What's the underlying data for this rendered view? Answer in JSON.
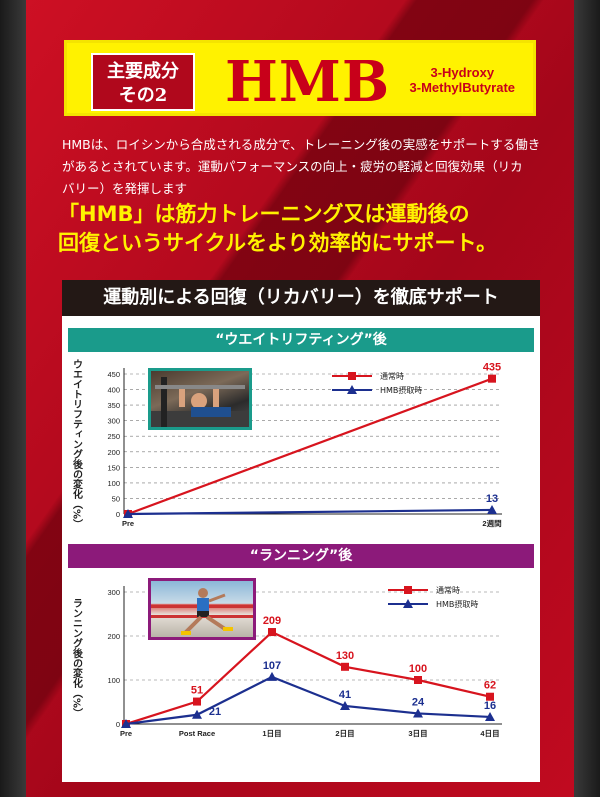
{
  "header": {
    "badge_line1": "主要成分",
    "badge_line2": "その2",
    "title": "HMB",
    "subtitle_line1": "3-Hydroxy",
    "subtitle_line2": "3-MethylButyrate"
  },
  "description": {
    "line1": "HMBは、ロイシンから合成される成分で、トレーニング後の実感をサポートする働き",
    "line2": "があるとされています。運動パフォーマンスの向上・疲労の軽減と回復効果（リカ",
    "line3": "バリー）を発揮します"
  },
  "highlight": {
    "line1": "「HMB」は筋力トレーニング又は運動後の",
    "line2": "回復というサイクルをより効率的にサポート。"
  },
  "panel": {
    "heading": "運動別による回復（リカバリー）を徹底サポート"
  },
  "colors": {
    "normal": "#d7141e",
    "hmb": "#1c2f8f",
    "weight_bar": "#1a9b8b",
    "running_bar": "#8c1a7a"
  },
  "chart_data": [
    {
      "type": "line",
      "title": "“ウエイトリフティング”後",
      "ylabel": "ウエイトリフティング後の変化（%）",
      "x": [
        "Pre",
        "2週間"
      ],
      "ylim": [
        0,
        450
      ],
      "yticks": [
        0,
        50,
        100,
        150,
        200,
        250,
        300,
        350,
        400,
        450
      ],
      "series": [
        {
          "name": "通常時",
          "values": [
            0,
            435
          ],
          "labels": [
            "",
            "435"
          ]
        },
        {
          "name": "HMB摂取時",
          "values": [
            0,
            13
          ],
          "labels": [
            "",
            "13"
          ]
        }
      ],
      "legend": "top-center"
    },
    {
      "type": "line",
      "title": "“ランニング”後",
      "ylabel": "ランニング後の変化（%）",
      "x": [
        "Pre",
        "Post Race",
        "1日目",
        "2日目",
        "3日目",
        "4日目"
      ],
      "ylim": [
        0,
        300
      ],
      "yticks": [
        0,
        100,
        200,
        300
      ],
      "series": [
        {
          "name": "通常時",
          "values": [
            0,
            51,
            209,
            130,
            100,
            62
          ],
          "labels": [
            "",
            "51",
            "209",
            "130",
            "100",
            "62"
          ]
        },
        {
          "name": "HMB摂取時",
          "values": [
            0,
            21,
            107,
            41,
            24,
            16
          ],
          "labels": [
            "",
            "21",
            "107",
            "41",
            "24",
            "16"
          ]
        }
      ],
      "legend": "top-right"
    }
  ]
}
